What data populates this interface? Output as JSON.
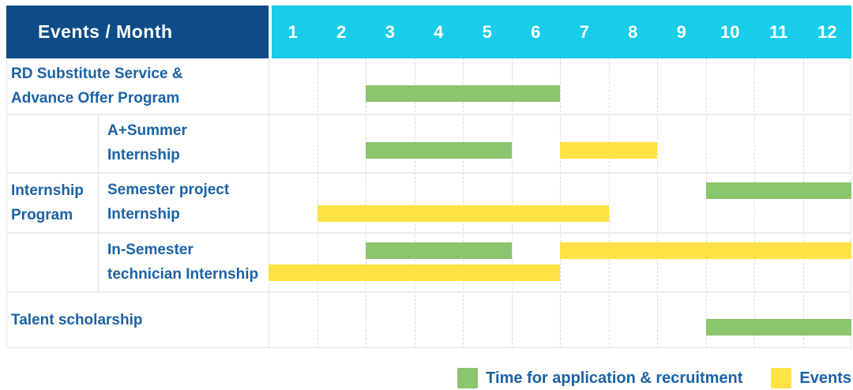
{
  "header": {
    "title": "Events / Month",
    "months": [
      "1",
      "2",
      "3",
      "4",
      "5",
      "6",
      "7",
      "8",
      "9",
      "10",
      "11",
      "12"
    ]
  },
  "colors": {
    "navy": "#0d4c87",
    "cyan": "#17cde9",
    "green": "#8bc56d",
    "yellow": "#ffe345",
    "text_blue": "#1b62a4"
  },
  "legend": [
    {
      "kind": "application",
      "label": "Time for application & recruitment"
    },
    {
      "kind": "event",
      "label": "Events"
    }
  ],
  "chart_data": {
    "type": "gantt",
    "title": "Events / Month",
    "x_unit": "month",
    "x_range": [
      1,
      12
    ],
    "series_kinds": {
      "application": "Time for application & recruitment",
      "event": "Events"
    },
    "group_label": "Internship Program",
    "rows": [
      {
        "label": "RD Substitute Service & Advance Offer Program",
        "label_lines": [
          "RD Substitute Service &",
          "Advance Offer Program"
        ],
        "in_group": false,
        "segments": [
          {
            "kind": "application",
            "start_month": 3,
            "end_month": 6,
            "line": "center"
          }
        ]
      },
      {
        "label": "A+Summer Internship",
        "label_lines": [
          "A+Summer",
          "Internship"
        ],
        "in_group": true,
        "segments": [
          {
            "kind": "application",
            "start_month": 3,
            "end_month": 5,
            "line": "center"
          },
          {
            "kind": "event",
            "start_month": 7,
            "end_month": 8,
            "line": "center"
          }
        ]
      },
      {
        "label": "Semester project Internship",
        "label_lines": [
          "Semester project",
          "Internship"
        ],
        "in_group": true,
        "segments": [
          {
            "kind": "application",
            "start_month": 10,
            "end_month": 12,
            "line": "top"
          },
          {
            "kind": "event",
            "start_month": 2,
            "end_month": 7,
            "line": "bottom"
          }
        ]
      },
      {
        "label": "In-Semester technician Internship",
        "label_lines": [
          "In-Semester",
          "technician Internship"
        ],
        "in_group": true,
        "segments": [
          {
            "kind": "application",
            "start_month": 3,
            "end_month": 5,
            "line": "top"
          },
          {
            "kind": "event",
            "start_month": 7,
            "end_month": 12,
            "line": "top"
          },
          {
            "kind": "event",
            "start_month": 1,
            "end_month": 6,
            "line": "bottom"
          }
        ]
      },
      {
        "label": "Talent scholarship",
        "label_lines": [
          "Talent scholarship"
        ],
        "in_group": false,
        "segments": [
          {
            "kind": "application",
            "start_month": 10,
            "end_month": 12,
            "line": "center"
          }
        ]
      }
    ]
  }
}
